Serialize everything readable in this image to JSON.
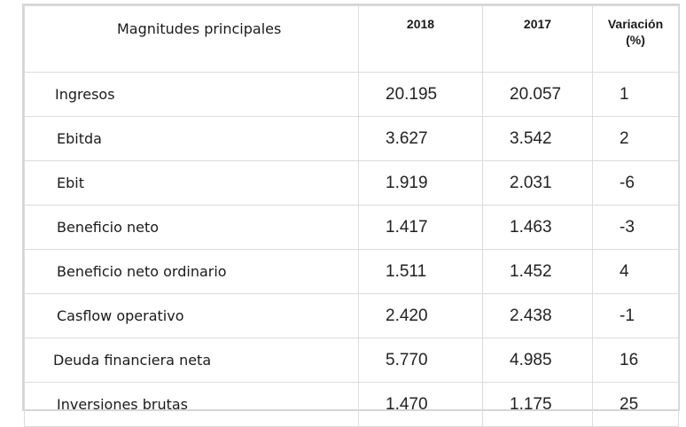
{
  "table": {
    "headers": {
      "title": "Magnitudes principales",
      "y2018": "2018",
      "y2017": "2017",
      "variation_line1": "Variación",
      "variation_line2": "(%)"
    },
    "rows": [
      {
        "label": "Ingresos",
        "v2018": "20.195",
        "v2017": "20.057",
        "var": "1"
      },
      {
        "label": "Ebitda",
        "v2018": "3.627",
        "v2017": "3.542",
        "var": "2"
      },
      {
        "label": "Ebit",
        "v2018": "1.919",
        "v2017": "2.031",
        "var": "-6"
      },
      {
        "label": "Beneficio neto",
        "v2018": "1.417",
        "v2017": "1.463",
        "var": "-3"
      },
      {
        "label": "Beneficio neto ordinario",
        "v2018": "1.511",
        "v2017": "1.452",
        "var": "4"
      },
      {
        "label": "Casflow operativo",
        "v2018": "2.420",
        "v2017": "2.438",
        "var": "-1"
      },
      {
        "label": "Deuda financiera neta",
        "v2018": "5.770",
        "v2017": "4.985",
        "var": "16"
      },
      {
        "label": "Inversiones brutas",
        "v2018": "1.470",
        "v2017": "1.175",
        "var": "25"
      }
    ]
  }
}
